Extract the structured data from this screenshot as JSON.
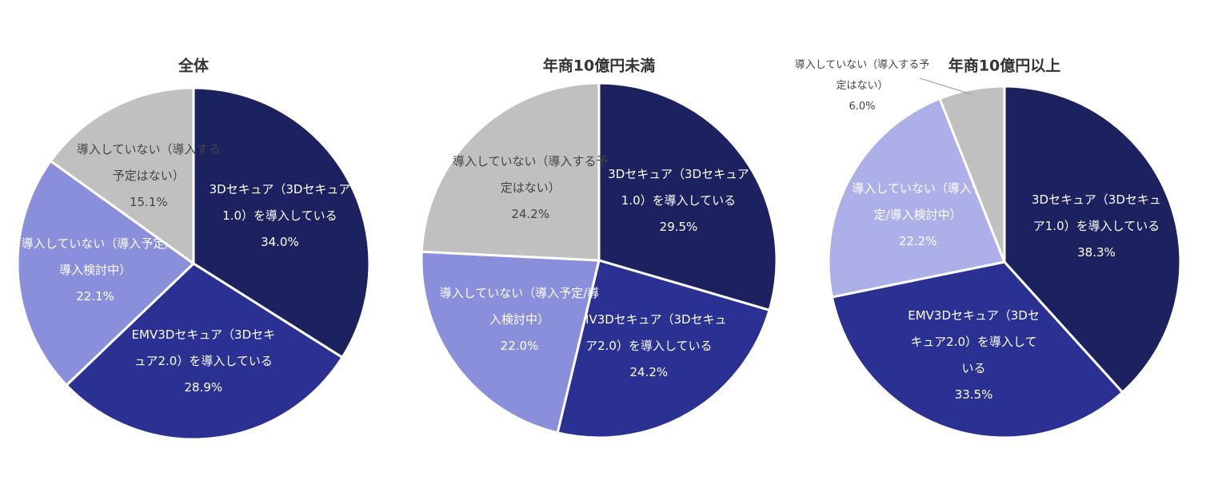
{
  "chart_data": [
    {
      "type": "pie",
      "title": "全体",
      "categories": [
        "3Dセキュア（3Dセキュア1.0）を導入している",
        "EMV3Dセキュア（3Dセキュア2.0）を導入している",
        "導入していない（導入予定/導入検討中）",
        "導入していない（導入する予定はない）"
      ],
      "values": [
        34.0,
        28.9,
        22.1,
        15.1
      ],
      "value_labels": [
        "34.0%",
        "28.9%",
        "22.1%",
        "15.1%"
      ],
      "colors": [
        "#1c2160",
        "#2a3192",
        "#8a8fdc",
        "#c0c0c0"
      ]
    },
    {
      "type": "pie",
      "title": "年商10億円未満",
      "categories": [
        "3Dセキュア（3Dセキュア1.0）を導入している",
        "EMV3Dセキュア（3Dセキュア2.0）を導入している",
        "導入していない（導入予定/導入検討中）",
        "導入していない（導入する予定はない）"
      ],
      "values": [
        29.5,
        24.2,
        22.0,
        24.2
      ],
      "value_labels": [
        "29.5%",
        "24.2%",
        "22.0%",
        "24.2%"
      ],
      "colors": [
        "#1c2160",
        "#2a3192",
        "#8a8fdc",
        "#c0c0c0"
      ]
    },
    {
      "type": "pie",
      "title": "年商10億円以上",
      "categories": [
        "3Dセキュア（3Dセキュア1.0）を導入している",
        "EMV3Dセキュア（3Dセキュア2.0）を導入している",
        "導入していない（導入予定/導入検討中）",
        "導入していない（導入する予定はない）"
      ],
      "values": [
        38.3,
        33.5,
        22.2,
        6.0
      ],
      "value_labels": [
        "38.3%",
        "33.5%",
        "22.2%",
        "6.0%"
      ],
      "colors": [
        "#1c2160",
        "#2a3192",
        "#adb0e8",
        "#c0c0c0"
      ]
    }
  ]
}
